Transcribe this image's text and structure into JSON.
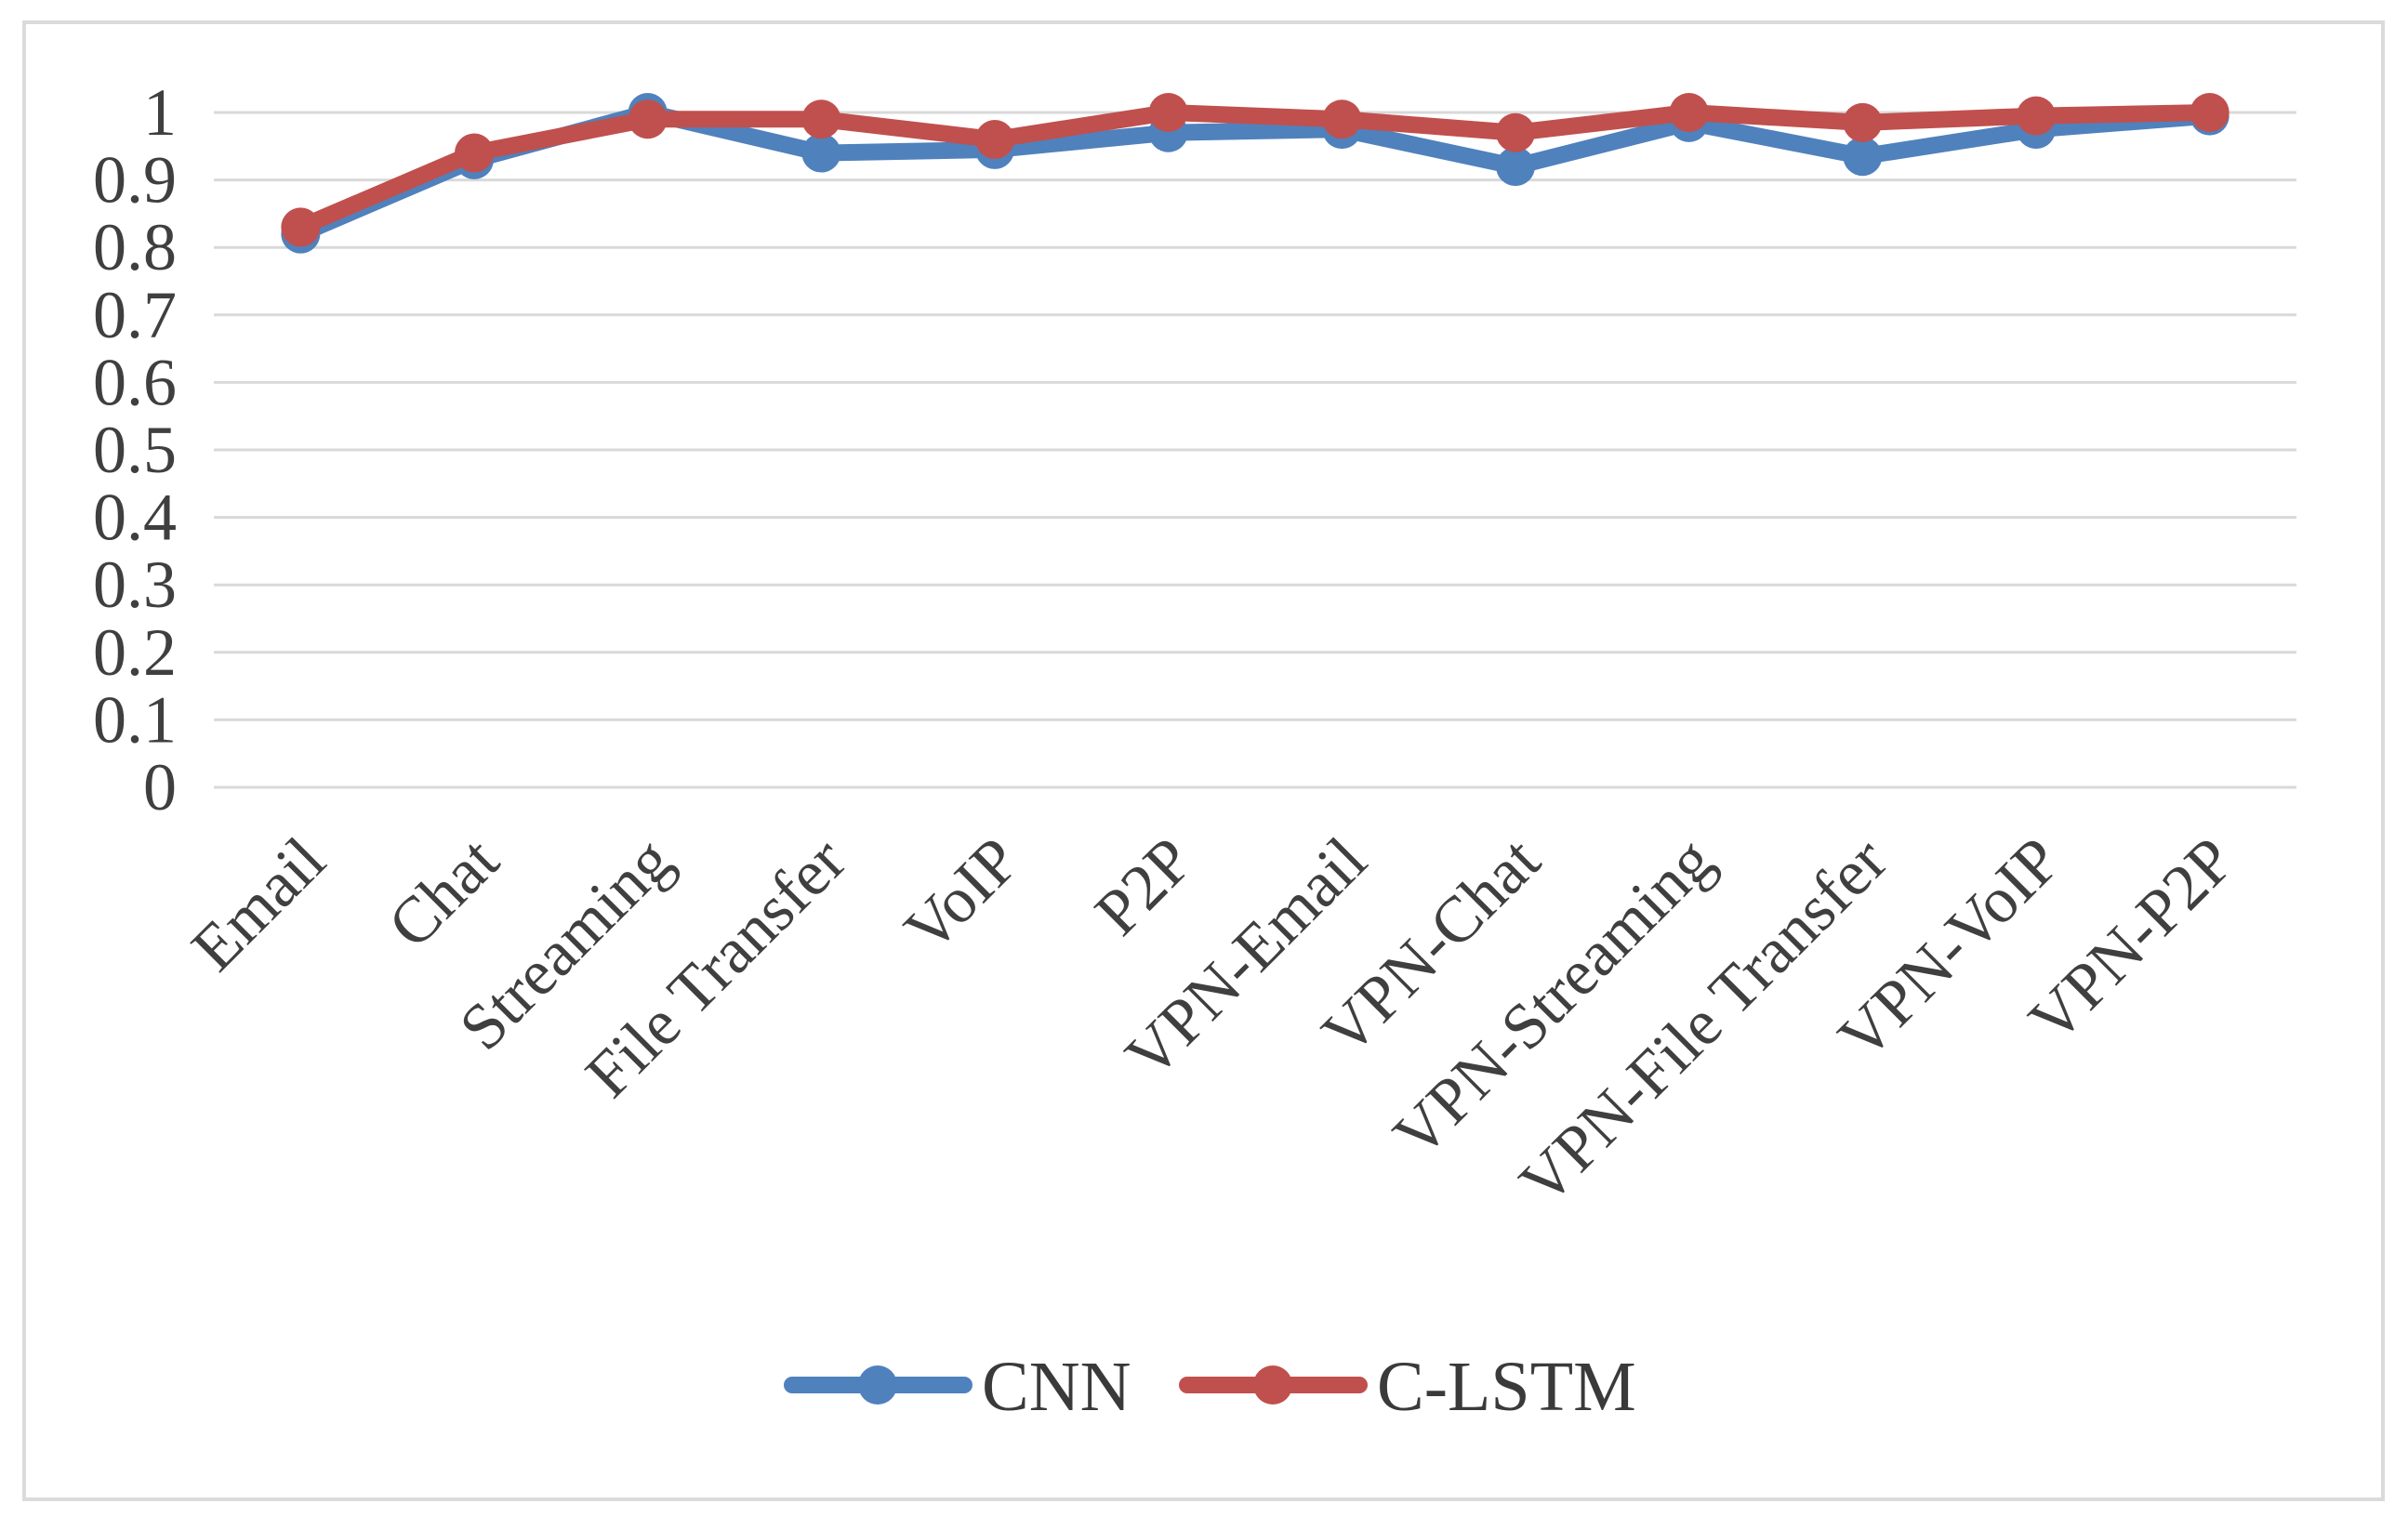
{
  "chart_data": {
    "type": "line",
    "title": "",
    "xlabel": "",
    "ylabel": "",
    "categories": [
      "Email",
      "Chat",
      "Streaming",
      "File Transfer",
      "VoIP",
      "P2P",
      "VPN-Email",
      "VPN-Chat",
      "VPN-Streaming",
      "VPN-File Transfer",
      "VPN-VoIP",
      "VPN-P2P"
    ],
    "series": [
      {
        "name": "CNN",
        "color": "#4F81BD",
        "values": [
          0.82,
          0.93,
          1.0,
          0.94,
          0.945,
          0.97,
          0.975,
          0.92,
          0.985,
          0.935,
          0.975,
          0.995
        ]
      },
      {
        "name": "C-LSTM",
        "color": "#C0504D",
        "values": [
          0.83,
          0.94,
          0.99,
          0.99,
          0.96,
          1.0,
          0.99,
          0.97,
          1.0,
          0.985,
          0.995,
          1.0
        ]
      }
    ],
    "ylim": [
      0,
      1
    ],
    "y_ticks": [
      "0",
      "0.1",
      "0.2",
      "0.3",
      "0.4",
      "0.5",
      "0.6",
      "0.7",
      "0.8",
      "0.9",
      "1"
    ],
    "grid": true,
    "legend_position": "bottom-center",
    "marker": "circle",
    "colors": {
      "gridline": "#D9D9D9",
      "figure_border": "#DBDBDB",
      "axis_text": "#3F3F3F",
      "legend_text": "#3A3A3A",
      "background": "#FFFFFF"
    }
  }
}
